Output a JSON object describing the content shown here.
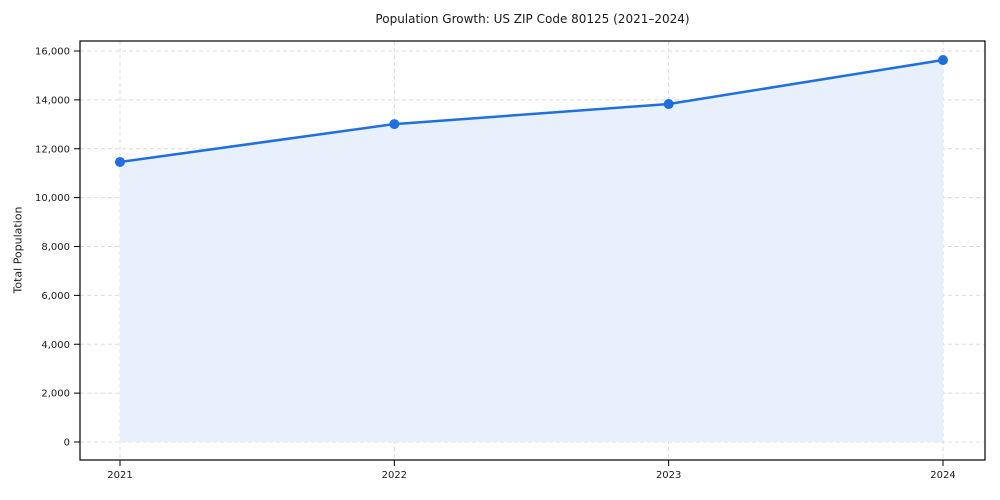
{
  "chart_data": {
    "type": "line",
    "title": "Population Growth: US ZIP Code 80125 (2021–2024)",
    "xlabel": "",
    "ylabel": "Total Population",
    "x": [
      "2021",
      "2022",
      "2023",
      "2024"
    ],
    "series": [
      {
        "name": "Total Population",
        "values": [
          11460,
          13010,
          13830,
          15630
        ]
      }
    ],
    "ylim": [
      0,
      16000
    ],
    "y_ticks": [
      0,
      2000,
      4000,
      6000,
      8000,
      10000,
      12000,
      14000,
      16000
    ],
    "y_tick_labels": [
      "0",
      "2,000",
      "4,000",
      "6,000",
      "8,000",
      "10,000",
      "12,000",
      "14,000",
      "16,000"
    ],
    "grid": "dashed horizontal and vertical",
    "legend": "none",
    "area_fill": true,
    "marker": "circle",
    "colors": {
      "line": "#1f6fe0",
      "marker": "#1f6fe0",
      "area_fill": "#e8f0fc",
      "grid": "#dcdcdc",
      "spine": "#000000",
      "text": "#1a1a1a",
      "background": "#ffffff"
    }
  }
}
